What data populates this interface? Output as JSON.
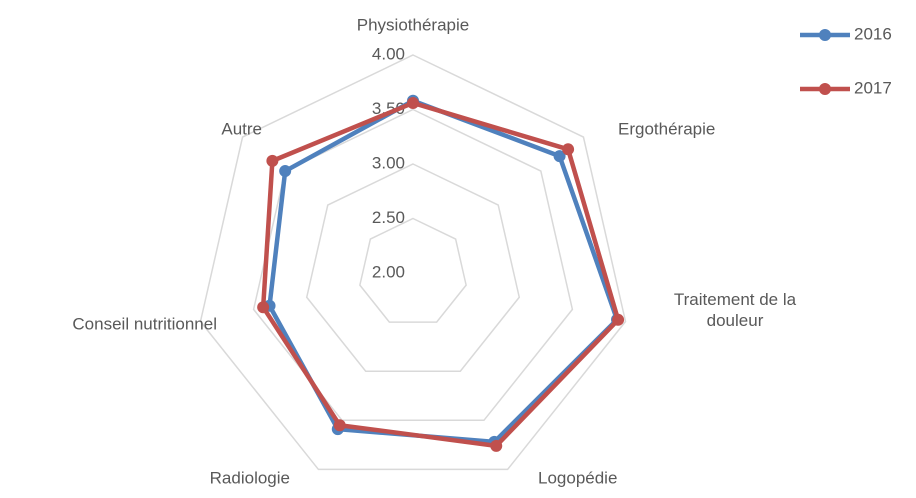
{
  "chart_data": {
    "type": "radar",
    "categories": [
      "Physiothérapie",
      "Ergothérapie",
      "Traitement de la douleur",
      "Logopédie",
      "Radiologie",
      "Conseil nutritionnel",
      "Autre"
    ],
    "series": [
      {
        "name": "2016",
        "color": "#4f81bd",
        "values": [
          3.58,
          3.72,
          3.92,
          3.72,
          3.59,
          3.35,
          3.5
        ]
      },
      {
        "name": "2017",
        "color": "#c0504d",
        "values": [
          3.56,
          3.82,
          3.93,
          3.76,
          3.55,
          3.41,
          3.65
        ]
      }
    ],
    "ylim": [
      2,
      4
    ],
    "yticks": [
      {
        "value": 2,
        "label": "2.00"
      },
      {
        "value": 2.5,
        "label": "2.50"
      },
      {
        "value": 3,
        "label": "3.00"
      },
      {
        "value": 3.5,
        "label": "3.50"
      },
      {
        "value": 4,
        "label": "4.00"
      }
    ],
    "grid": true,
    "legend": "top-right"
  }
}
